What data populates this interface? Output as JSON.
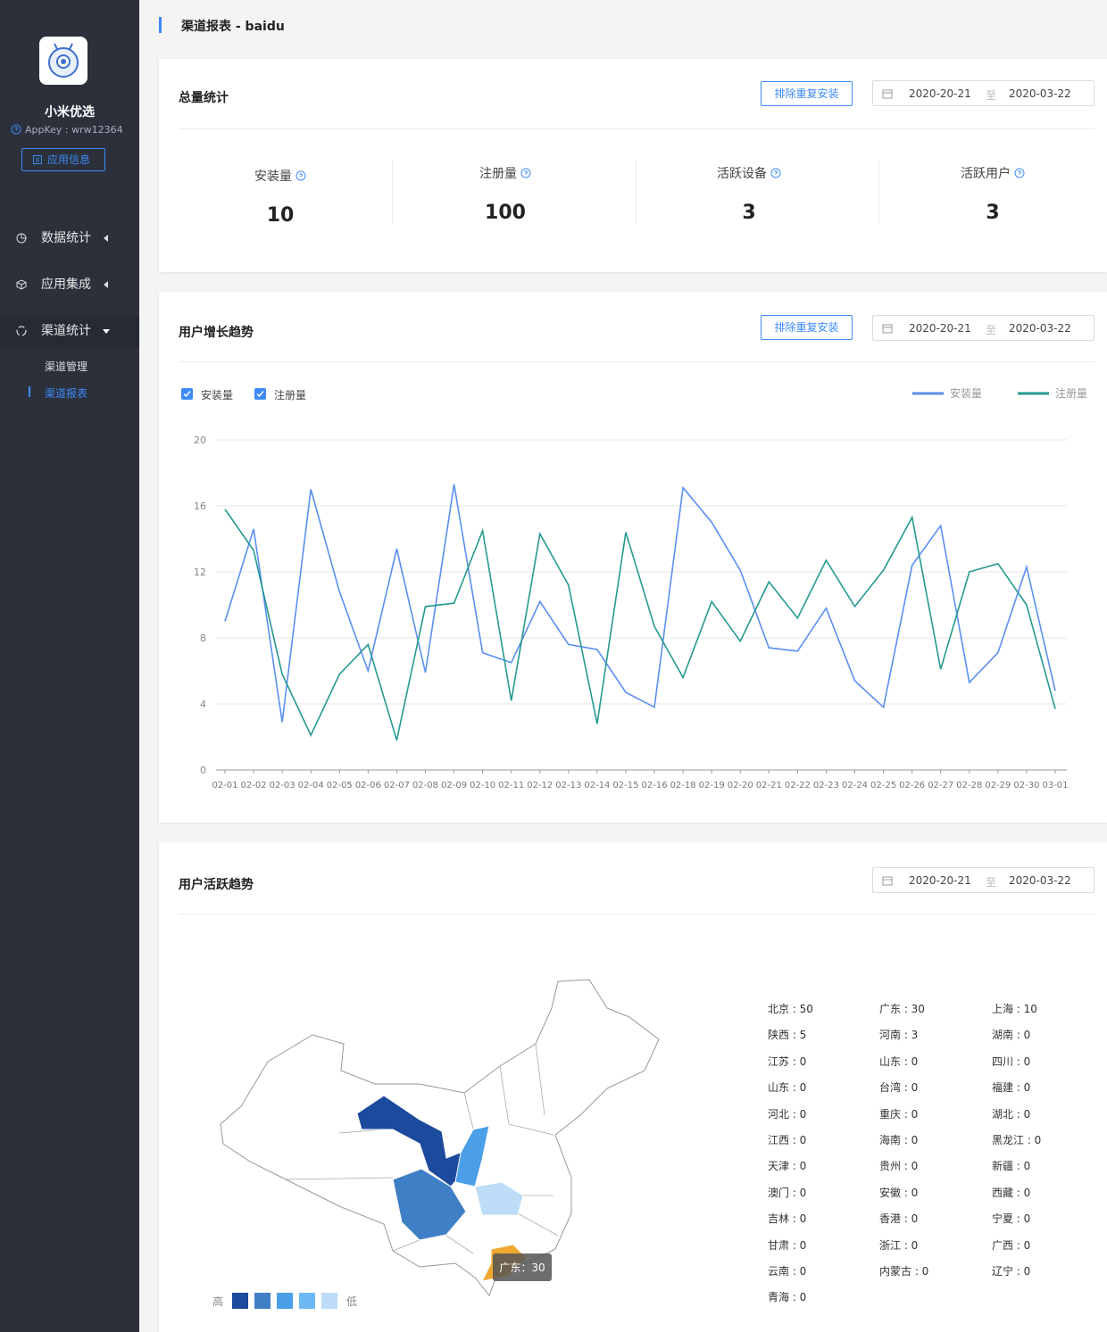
{
  "sidebar": {
    "app_name": "小米优选",
    "app_key": "AppKey : wrw12364",
    "app_info_button": "应用信息",
    "menu": [
      "数据统计",
      "应用集成",
      "渠道统计"
    ],
    "submenu": [
      "渠道管理",
      "渠道报表"
    ]
  },
  "header": {
    "title": "渠道报表 - baidu"
  },
  "date_range": {
    "start": "2020-20-21",
    "separator": "至",
    "end": "2020-03-22"
  },
  "summary": {
    "title": "总量统计",
    "button": "排除重复安装",
    "stats": [
      {
        "label": "安装量",
        "value": "10"
      },
      {
        "label": "注册量",
        "value": "100"
      },
      {
        "label": "活跃设备",
        "value": "3"
      },
      {
        "label": "活跃用户",
        "value": "3"
      }
    ]
  },
  "chart_data": {
    "type": "line",
    "title": "用户增长趋势",
    "button": "排除重复安装",
    "categories": [
      "02-01",
      "02-02",
      "02-03",
      "02-04",
      "02-05",
      "02-06",
      "02-07",
      "02-08",
      "02-09",
      "02-10",
      "02-11",
      "02-12",
      "02-13",
      "02-14",
      "02-15",
      "02-16",
      "02-18",
      "02-19",
      "02-20",
      "02-21",
      "02-22",
      "02-23",
      "02-24",
      "02-25",
      "02-26",
      "02-27",
      "02-28",
      "02-29",
      "02-30",
      "03-01"
    ],
    "series": [
      {
        "name": "安装量",
        "color": "#5b8ff0",
        "values": [
          9.0,
          14.6,
          2.9,
          17.0,
          10.8,
          6.0,
          13.4,
          5.9,
          17.3,
          7.1,
          6.5,
          10.2,
          7.6,
          7.3,
          4.7,
          3.8,
          17.1,
          15.0,
          12.1,
          7.4,
          7.2,
          9.8,
          5.4,
          3.8,
          12.4,
          14.8,
          5.3,
          7.1,
          12.3,
          4.8
        ]
      },
      {
        "name": "注册量",
        "color": "#25998f",
        "values": [
          15.8,
          13.3,
          5.8,
          2.1,
          5.8,
          7.6,
          1.8,
          9.9,
          10.1,
          14.5,
          4.2,
          14.3,
          11.2,
          2.8,
          14.4,
          8.7,
          5.6,
          10.2,
          7.8,
          11.4,
          9.2,
          12.7,
          9.9,
          12.1,
          15.3,
          6.1,
          12.0,
          12.5,
          10.0,
          3.7
        ]
      }
    ],
    "ylim": [
      0,
      20
    ],
    "yticks": [
      0,
      4,
      8,
      12,
      16,
      20
    ],
    "grid": true,
    "legend": "top-right"
  },
  "activity": {
    "title": "用户活跃趋势",
    "legend": {
      "high": "高",
      "low": "低",
      "colors": [
        "#1c4a9c",
        "#3f7fc6",
        "#4a9fe8",
        "#6db8f2",
        "#bcdcf7"
      ]
    },
    "tooltip": "广东：30",
    "regions": [
      "北京 : 50",
      "广东 : 30",
      "上海 : 10",
      "陕西 : 5",
      "河南 : 3",
      "湖南 : 0",
      "江苏 : 0",
      "山东 : 0",
      "四川 : 0",
      "山东 : 0",
      "台湾 : 0",
      "福建 : 0",
      "河北 : 0",
      "重庆 : 0",
      "湖北 : 0",
      "江西 : 0",
      "海南 : 0",
      "黑龙江 : 0",
      "天津 : 0",
      "贵州 : 0",
      "新疆 : 0",
      "澳门 : 0",
      "安徽 : 0",
      "西藏 : 0",
      "吉林 : 0",
      "香港 : 0",
      "宁夏 : 0",
      "甘肃 : 0",
      "浙江 : 0",
      "广西 : 0",
      "云南 : 0",
      "内蒙古 : 0",
      "辽宁 : 0",
      "青海 : 0"
    ]
  }
}
